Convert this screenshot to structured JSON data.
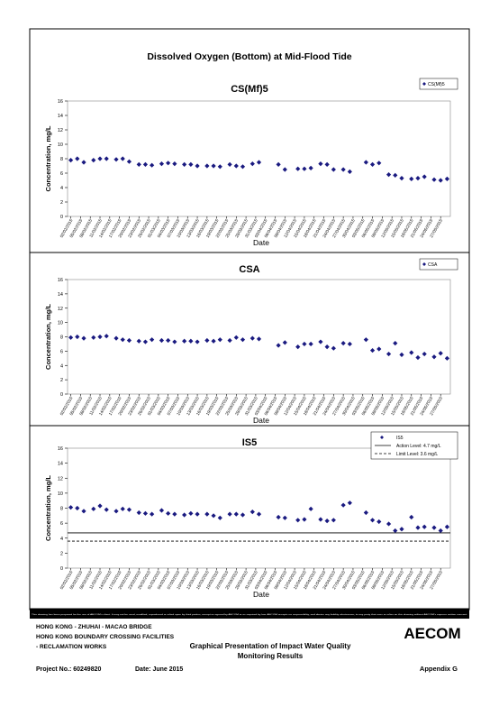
{
  "title": "Dissolved Oxygen (Bottom) at Mid-Flood Tide",
  "chart_data": [
    {
      "type": "scatter",
      "title": "CS(Mf)5",
      "y_label": "Concentration, mg/L",
      "x_label": "Date",
      "ylim": [
        0,
        16
      ],
      "yticks": [
        0,
        2,
        4,
        6,
        8,
        10,
        12,
        14,
        16
      ],
      "xlim": [
        "01/02/2015",
        "30/05/2015"
      ],
      "xticks": [
        "02/02/2015",
        "05/02/2015",
        "08/02/2015",
        "11/02/2015",
        "14/02/2015",
        "17/02/2015",
        "20/02/2015",
        "23/02/2015",
        "26/02/2015",
        "01/03/2015",
        "04/03/2015",
        "07/03/2015",
        "10/03/2015",
        "13/03/2015",
        "16/03/2015",
        "19/03/2015",
        "22/03/2015",
        "25/03/2015",
        "28/03/2015",
        "31/03/2015",
        "03/04/2015",
        "06/04/2015",
        "09/04/2015",
        "12/04/2015",
        "15/04/2015",
        "18/04/2015",
        "21/04/2015",
        "24/04/2015",
        "27/04/2015",
        "30/04/2015",
        "03/05/2015",
        "06/05/2015",
        "09/05/2015",
        "12/05/2015",
        "15/05/2015",
        "18/05/2015",
        "21/05/2015",
        "24/05/2015",
        "27/05/2015"
      ],
      "x": [
        "02/02/2015",
        "04/02/2015",
        "06/02/2015",
        "09/02/2015",
        "11/02/2015",
        "13/02/2015",
        "16/02/2015",
        "18/02/2015",
        "20/02/2015",
        "23/02/2015",
        "25/02/2015",
        "27/02/2015",
        "02/03/2015",
        "04/03/2015",
        "06/03/2015",
        "09/03/2015",
        "11/03/2015",
        "13/03/2015",
        "16/03/2015",
        "18/03/2015",
        "20/03/2015",
        "23/03/2015",
        "25/03/2015",
        "27/03/2015",
        "30/03/2015",
        "01/04/2015",
        "07/04/2015",
        "09/04/2015",
        "13/04/2015",
        "15/04/2015",
        "17/04/2015",
        "20/04/2015",
        "22/04/2015",
        "24/04/2015",
        "27/04/2015",
        "29/04/2015",
        "04/05/2015",
        "06/05/2015",
        "08/05/2015",
        "11/05/2015",
        "13/05/2015",
        "15/05/2015",
        "18/05/2015",
        "20/05/2015",
        "22/05/2015",
        "25/05/2015",
        "27/05/2015",
        "29/05/2015"
      ],
      "series": [
        {
          "name": "CS(Mf)5",
          "color": "#1a1a80",
          "values": [
            7.8,
            8.0,
            7.5,
            7.8,
            8.0,
            8.0,
            7.9,
            8.0,
            7.6,
            7.2,
            7.2,
            7.1,
            7.3,
            7.4,
            7.3,
            7.2,
            7.2,
            7.0,
            7.0,
            7.0,
            6.9,
            7.2,
            7.0,
            6.9,
            7.3,
            7.5,
            7.2,
            6.5,
            6.6,
            6.6,
            6.7,
            7.3,
            7.2,
            6.5,
            6.5,
            6.2,
            7.5,
            7.2,
            7.4,
            5.8,
            5.7,
            5.3,
            5.2,
            5.3,
            5.5,
            5.1,
            5.0,
            5.2
          ]
        }
      ]
    },
    {
      "type": "scatter",
      "title": "CSA",
      "y_label": "Concentration, mg/L",
      "x_label": "Date",
      "ylim": [
        0,
        16
      ],
      "yticks": [
        0,
        2,
        4,
        6,
        8,
        10,
        12,
        14,
        16
      ],
      "xlim": [
        "01/02/2015",
        "30/05/2015"
      ],
      "xticks": [
        "02/02/2015",
        "05/02/2015",
        "08/02/2015",
        "11/02/2015",
        "14/02/2015",
        "17/02/2015",
        "20/02/2015",
        "23/02/2015",
        "26/02/2015",
        "01/03/2015",
        "04/03/2015",
        "07/03/2015",
        "10/03/2015",
        "13/03/2015",
        "16/03/2015",
        "19/03/2015",
        "22/03/2015",
        "25/03/2015",
        "28/03/2015",
        "31/03/2015",
        "03/04/2015",
        "06/04/2015",
        "09/04/2015",
        "12/04/2015",
        "15/04/2015",
        "18/04/2015",
        "21/04/2015",
        "24/04/2015",
        "27/04/2015",
        "30/04/2015",
        "03/05/2015",
        "06/05/2015",
        "09/05/2015",
        "12/05/2015",
        "15/05/2015",
        "18/05/2015",
        "21/05/2015",
        "24/05/2015",
        "27/05/2015"
      ],
      "x": [
        "02/02/2015",
        "04/02/2015",
        "06/02/2015",
        "09/02/2015",
        "11/02/2015",
        "13/02/2015",
        "16/02/2015",
        "18/02/2015",
        "20/02/2015",
        "23/02/2015",
        "25/02/2015",
        "27/02/2015",
        "02/03/2015",
        "04/03/2015",
        "06/03/2015",
        "09/03/2015",
        "11/03/2015",
        "13/03/2015",
        "16/03/2015",
        "18/03/2015",
        "20/03/2015",
        "23/03/2015",
        "25/03/2015",
        "27/03/2015",
        "30/03/2015",
        "01/04/2015",
        "07/04/2015",
        "09/04/2015",
        "13/04/2015",
        "15/04/2015",
        "17/04/2015",
        "20/04/2015",
        "22/04/2015",
        "24/04/2015",
        "27/04/2015",
        "29/04/2015",
        "04/05/2015",
        "06/05/2015",
        "08/05/2015",
        "11/05/2015",
        "13/05/2015",
        "15/05/2015",
        "18/05/2015",
        "20/05/2015",
        "22/05/2015",
        "25/05/2015",
        "27/05/2015",
        "29/05/2015"
      ],
      "series": [
        {
          "name": "CSA",
          "color": "#1a1a80",
          "values": [
            7.9,
            8.0,
            7.8,
            7.9,
            8.0,
            8.1,
            7.8,
            7.6,
            7.5,
            7.4,
            7.3,
            7.6,
            7.5,
            7.5,
            7.3,
            7.4,
            7.4,
            7.3,
            7.5,
            7.4,
            7.6,
            7.5,
            7.9,
            7.6,
            7.8,
            7.7,
            6.8,
            7.2,
            6.6,
            7.0,
            7.0,
            7.3,
            6.6,
            6.4,
            7.1,
            7.0,
            7.6,
            6.1,
            6.3,
            5.6,
            7.1,
            5.5,
            5.8,
            5.1,
            5.6,
            5.2,
            5.7,
            5.0
          ]
        }
      ]
    },
    {
      "type": "scatter",
      "title": "IS5",
      "y_label": "Concentration, mg/L",
      "x_label": "Date",
      "ylim": [
        0,
        16
      ],
      "yticks": [
        0,
        2,
        4,
        6,
        8,
        10,
        12,
        14,
        16
      ],
      "xlim": [
        "01/02/2015",
        "30/05/2015"
      ],
      "xticks": [
        "02/02/2015",
        "05/02/2015",
        "08/02/2015",
        "11/02/2015",
        "14/02/2015",
        "17/02/2015",
        "20/02/2015",
        "23/02/2015",
        "26/02/2015",
        "01/03/2015",
        "04/03/2015",
        "07/03/2015",
        "10/03/2015",
        "13/03/2015",
        "16/03/2015",
        "19/03/2015",
        "22/03/2015",
        "25/03/2015",
        "28/03/2015",
        "31/03/2015",
        "03/04/2015",
        "06/04/2015",
        "09/04/2015",
        "12/04/2015",
        "15/04/2015",
        "18/04/2015",
        "21/04/2015",
        "24/04/2015",
        "27/04/2015",
        "30/04/2015",
        "03/05/2015",
        "06/05/2015",
        "09/05/2015",
        "12/05/2015",
        "15/05/2015",
        "18/05/2015",
        "21/05/2015",
        "24/05/2015",
        "27/05/2015"
      ],
      "x": [
        "02/02/2015",
        "04/02/2015",
        "06/02/2015",
        "09/02/2015",
        "11/02/2015",
        "13/02/2015",
        "16/02/2015",
        "18/02/2015",
        "20/02/2015",
        "23/02/2015",
        "25/02/2015",
        "27/02/2015",
        "02/03/2015",
        "04/03/2015",
        "06/03/2015",
        "09/03/2015",
        "11/03/2015",
        "13/03/2015",
        "16/03/2015",
        "18/03/2015",
        "20/03/2015",
        "23/03/2015",
        "25/03/2015",
        "27/03/2015",
        "30/03/2015",
        "01/04/2015",
        "07/04/2015",
        "09/04/2015",
        "13/04/2015",
        "15/04/2015",
        "17/04/2015",
        "20/04/2015",
        "22/04/2015",
        "24/04/2015",
        "27/04/2015",
        "29/04/2015",
        "04/05/2015",
        "06/05/2015",
        "08/05/2015",
        "11/05/2015",
        "13/05/2015",
        "15/05/2015",
        "18/05/2015",
        "20/05/2015",
        "22/05/2015",
        "25/05/2015",
        "27/05/2015",
        "29/05/2015"
      ],
      "series": [
        {
          "name": "IS5",
          "color": "#1a1a80",
          "values": [
            8.1,
            8.0,
            7.6,
            7.9,
            8.3,
            7.8,
            7.6,
            7.9,
            7.8,
            7.4,
            7.3,
            7.2,
            7.7,
            7.3,
            7.2,
            7.1,
            7.3,
            7.2,
            7.2,
            7.0,
            6.7,
            7.2,
            7.2,
            7.1,
            7.5,
            7.2,
            6.8,
            6.7,
            6.4,
            6.5,
            7.9,
            6.5,
            6.3,
            6.4,
            8.4,
            8.7,
            7.4,
            6.4,
            6.2,
            5.9,
            5.0,
            5.2,
            6.8,
            5.4,
            5.5,
            5.4,
            5.0,
            5.5
          ]
        }
      ],
      "lines": [
        {
          "name": "Action Level: 4.7 mg/L",
          "value": 4.7,
          "dash": "none"
        },
        {
          "name": "Limit Level: 3.6 mg/L",
          "value": 3.6,
          "dash": "3,2"
        }
      ]
    }
  ],
  "disclaimer": "This drawing has been prepared for the use of AECOM's client. It may not be used, modified, reproduced or relied upon by third parties, except as agreed by AECOM or as required by law. AECOM accepts no responsibility, and denies any liability whatsoever, to any party that uses or relies on this drawing without AECOM's express written consent.",
  "footer": {
    "project_lines": [
      "HONG KONG - ZHUHAI - MACAO BRIDGE",
      "HONG KONG BOUNDARY CROSSING FACILITIES",
      "- RECLAMATION WORKS"
    ],
    "heading_lines": [
      "Graphical Presentation of Impact Water Quality",
      "Monitoring Results"
    ],
    "logo": "AECOM",
    "project_no": "Project No.: 60249820",
    "date": "Date: June 2015",
    "appendix": "Appendix G"
  }
}
